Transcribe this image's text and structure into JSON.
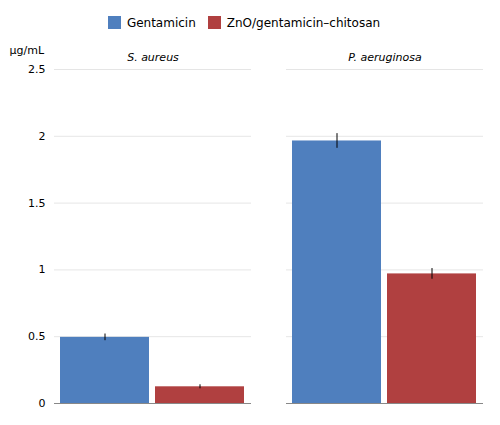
{
  "chart_data": {
    "type": "bar",
    "categories": [
      "S. aureus",
      "P. aeruginosa"
    ],
    "series": [
      {
        "name": "Gentamicin",
        "color": "#4f7fbe",
        "values": [
          0.495,
          1.965
        ],
        "errors": [
          0.025,
          0.055
        ]
      },
      {
        "name": "ZnO/gentamicin–chitosan",
        "color": "#b04040",
        "values": [
          0.125,
          0.97
        ],
        "errors": [
          0.015,
          0.04
        ]
      }
    ],
    "ylabel": "µg/mL",
    "ylim": [
      0,
      2.5
    ],
    "yticks": [
      0,
      0.5,
      1,
      1.5,
      2,
      2.5
    ],
    "grid": true,
    "legend": "top"
  }
}
